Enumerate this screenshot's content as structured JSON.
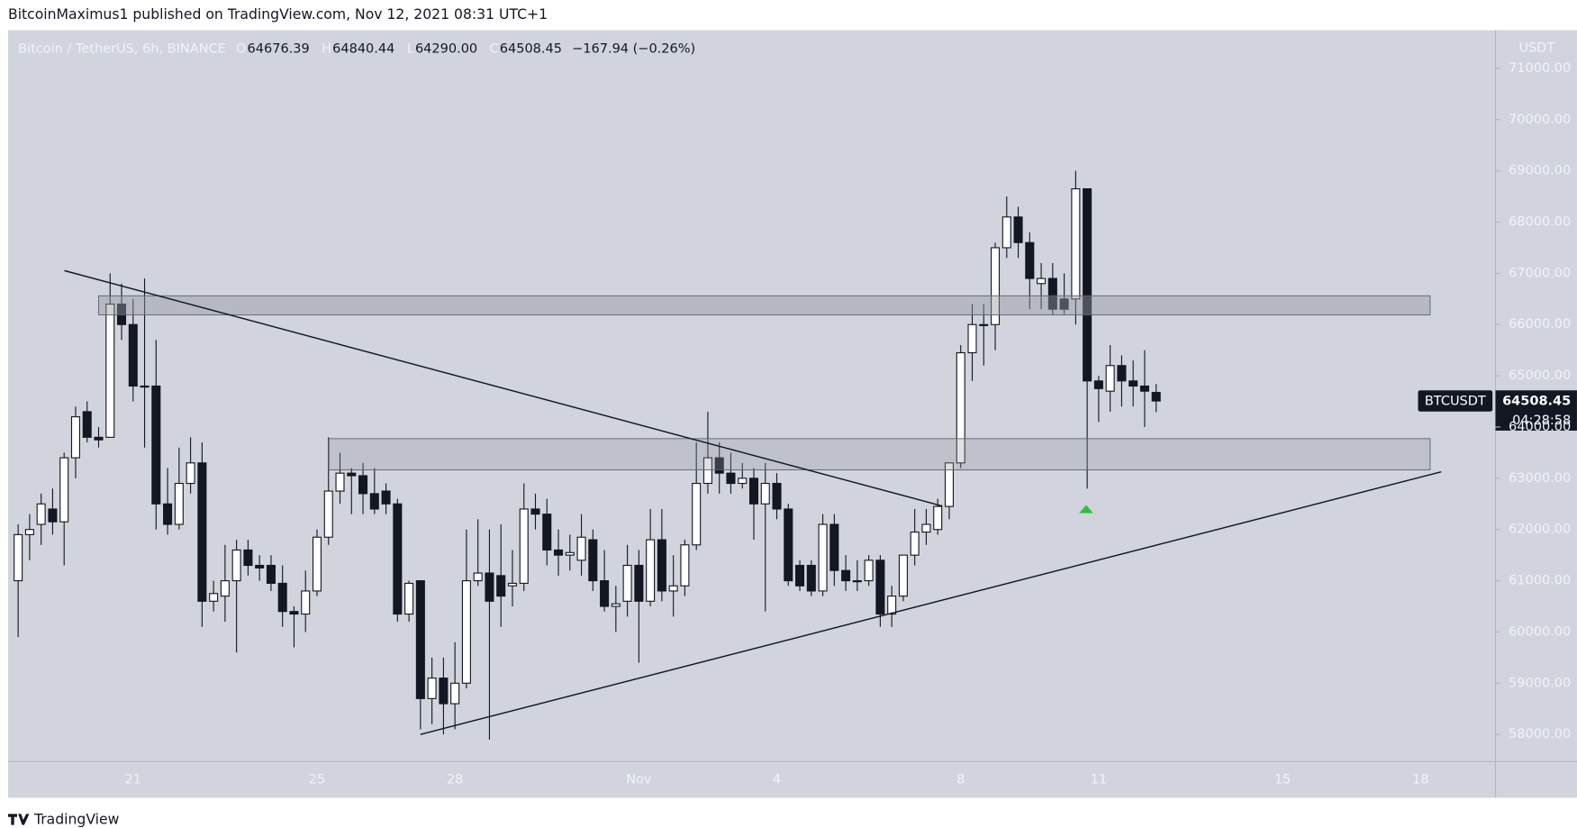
{
  "header": {
    "published": "BitcoinMaximus1 published on TradingView.com, Nov 12, 2021 08:31 UTC+1",
    "logo": "TradingView"
  },
  "chart_data": {
    "type": "candlestick",
    "legend": {
      "symbol": "Bitcoin / TetherUS, 6h, BINANCE",
      "items": [
        {
          "key": "O",
          "value": "64676.39"
        },
        {
          "key": "H",
          "value": "64840.44"
        },
        {
          "key": "L",
          "value": "64290.00"
        },
        {
          "key": "C",
          "value": "64508.45"
        }
      ],
      "change": "−167.94 (−0.26%)"
    },
    "y_axis_unit": "USDT",
    "symbol_tag": "BTCUSDT",
    "last_price_label": "64508.45",
    "countdown": "04:28:58",
    "up_color": "#ffffff",
    "down_color": "#131722",
    "background": "#d1d4dc",
    "grid": false,
    "ylim": [
      57470,
      71746
    ],
    "yticks": [
      {
        "value": 58000,
        "label": "58000.00"
      },
      {
        "value": 59000,
        "label": "59000.00"
      },
      {
        "value": 60000,
        "label": "60000.00"
      },
      {
        "value": 61000,
        "label": "61000.00"
      },
      {
        "value": 62000,
        "label": "62000.00"
      },
      {
        "value": 63000,
        "label": "63000.00"
      },
      {
        "value": 64000,
        "label": "64000.00"
      },
      {
        "value": 65000,
        "label": "65000.00"
      },
      {
        "value": 66000,
        "label": "66000.00"
      },
      {
        "value": 67000,
        "label": "67000.00"
      },
      {
        "value": 68000,
        "label": "68000.00"
      },
      {
        "value": 69000,
        "label": "69000.00"
      },
      {
        "value": 70000,
        "label": "70000.00"
      },
      {
        "value": 71000,
        "label": "71000.00"
      }
    ],
    "categories": [
      null,
      null,
      null,
      null,
      null,
      null,
      null,
      null,
      null,
      null,
      "21",
      null,
      null,
      null,
      null,
      null,
      null,
      null,
      null,
      null,
      null,
      null,
      null,
      null,
      null,
      null,
      "25",
      null,
      null,
      null,
      null,
      null,
      null,
      null,
      null,
      null,
      null,
      null,
      "28",
      null,
      null,
      null,
      null,
      null,
      null,
      null,
      null,
      null,
      null,
      null,
      null,
      null,
      null,
      null,
      "Nov",
      null,
      null,
      null,
      null,
      null,
      null,
      null,
      null,
      null,
      null,
      null,
      "4",
      null,
      null,
      null,
      null,
      null,
      null,
      null,
      null,
      null,
      null,
      null,
      null,
      null,
      null,
      null,
      "8",
      null,
      null,
      null,
      null,
      null,
      null,
      null,
      null,
      null,
      null,
      null,
      "11",
      null,
      null,
      null,
      null,
      null,
      null,
      null,
      null,
      null,
      null,
      null,
      null,
      null,
      null,
      null,
      "15",
      null,
      null,
      null,
      null,
      null,
      null,
      null,
      null,
      null,
      null,
      null,
      "18",
      null,
      null,
      null,
      null,
      null,
      null
    ],
    "open": [
      61000,
      61900,
      62100,
      62400,
      62150,
      63400,
      64300,
      63800,
      63800,
      66400,
      66000,
      64800,
      64800,
      62500,
      62100,
      62900,
      63300,
      60600,
      60700,
      61000,
      61600,
      61300,
      61300,
      60950,
      60400,
      60350,
      60800,
      61850,
      62750,
      63100,
      63050,
      62700,
      62750,
      62500,
      60350,
      61000,
      58700,
      59100,
      58600,
      59000,
      61000,
      61150,
      61100,
      60900,
      60950,
      62400,
      62300,
      61600,
      61500,
      61400,
      61800,
      61000,
      60500,
      60600,
      61300,
      60600,
      61800,
      60800,
      60900,
      61700,
      62900,
      63400,
      63100,
      62900,
      63000,
      62500,
      62900,
      62400,
      61300,
      61300,
      60800,
      62100,
      61200,
      61000,
      61000,
      61400,
      60350,
      60700,
      61500,
      61950,
      62000,
      62450,
      63300,
      65450,
      66000,
      66000,
      67500,
      68100,
      67600,
      66800,
      66900,
      66500,
      66500,
      68650,
      64900,
      64700,
      65200,
      64900,
      64800,
      64676.39,
      null,
      null,
      null,
      null,
      null,
      null,
      null,
      null,
      null,
      null,
      null,
      null,
      null,
      null,
      null,
      null,
      null,
      null,
      null,
      null,
      null,
      null,
      null,
      null,
      null,
      null,
      null,
      null,
      null
    ],
    "high": [
      62100,
      62300,
      62700,
      62800,
      63500,
      64400,
      64500,
      64000,
      67000,
      66800,
      66500,
      66900,
      65700,
      63200,
      63600,
      63800,
      63700,
      61000,
      61700,
      61800,
      61800,
      61500,
      61500,
      61300,
      60500,
      61200,
      62000,
      63800,
      63500,
      63200,
      63300,
      63200,
      62900,
      62600,
      61000,
      61000,
      59500,
      59500,
      59800,
      62000,
      62200,
      62000,
      62100,
      61600,
      62900,
      62700,
      62600,
      62000,
      61900,
      62300,
      62000,
      61600,
      60900,
      61700,
      61600,
      62400,
      62400,
      61500,
      61800,
      63700,
      64300,
      63700,
      63500,
      63300,
      63200,
      63300,
      63100,
      62500,
      61400,
      61400,
      62300,
      62300,
      61500,
      61400,
      61500,
      61500,
      60900,
      61500,
      62400,
      62400,
      62600,
      63300,
      65600,
      66400,
      66400,
      67600,
      68500,
      68300,
      67800,
      67200,
      67200,
      67000,
      69000,
      68650,
      65000,
      65600,
      65400,
      65300,
      65500,
      64840.44,
      null,
      null,
      null,
      null,
      null,
      null,
      null,
      null,
      null,
      null,
      null,
      null,
      null,
      null,
      null,
      null,
      null,
      null,
      null,
      null,
      null,
      null,
      null,
      null,
      null,
      null,
      null,
      null,
      null
    ],
    "low": [
      59900,
      61400,
      61700,
      61900,
      61300,
      63000,
      63700,
      63600,
      63800,
      65700,
      64500,
      63600,
      62000,
      61900,
      62000,
      62700,
      60100,
      60400,
      60200,
      59600,
      61100,
      61000,
      60800,
      60100,
      59700,
      60000,
      60700,
      61700,
      62500,
      62300,
      62300,
      62300,
      62300,
      60200,
      60200,
      58100,
      58200,
      58000,
      58100,
      58900,
      60900,
      57900,
      60100,
      60500,
      60800,
      62000,
      61300,
      61100,
      61200,
      61100,
      60800,
      60400,
      60000,
      60300,
      59400,
      60500,
      60600,
      60300,
      60700,
      61600,
      62700,
      62700,
      62700,
      62800,
      61800,
      60400,
      62200,
      60900,
      60800,
      60700,
      60700,
      60900,
      60800,
      60800,
      60900,
      60100,
      60100,
      60600,
      61300,
      61700,
      61900,
      62200,
      63200,
      64900,
      65200,
      65500,
      67300,
      67300,
      66300,
      66300,
      66200,
      66200,
      66000,
      62800,
      64100,
      64300,
      64400,
      64400,
      64000,
      64290,
      null,
      null,
      null,
      null,
      null,
      null,
      null,
      null,
      null,
      null,
      null,
      null,
      null,
      null,
      null,
      null,
      null,
      null,
      null,
      null,
      null,
      null,
      null,
      null,
      null,
      null,
      null,
      null,
      null
    ],
    "close": [
      61900,
      62000,
      62500,
      62150,
      63400,
      64200,
      63800,
      63750,
      66400,
      66000,
      64800,
      64800,
      62500,
      62100,
      62900,
      63300,
      60600,
      60750,
      61000,
      61600,
      61300,
      61250,
      60950,
      60400,
      60350,
      60800,
      61850,
      62750,
      63100,
      63050,
      62700,
      62400,
      62500,
      60350,
      60950,
      58700,
      59100,
      58600,
      59000,
      61000,
      61150,
      60600,
      60700,
      60950,
      62400,
      62300,
      61600,
      61500,
      61550,
      61850,
      61000,
      60500,
      60550,
      61300,
      60600,
      61800,
      60800,
      60900,
      61700,
      62900,
      63400,
      63100,
      62900,
      63000,
      62500,
      62900,
      62400,
      61000,
      60900,
      60800,
      62100,
      61200,
      61000,
      61000,
      61400,
      60350,
      60700,
      61500,
      61950,
      62100,
      62450,
      63300,
      65450,
      66000,
      65980,
      67500,
      68100,
      67600,
      66900,
      66900,
      66300,
      66300,
      68650,
      64900,
      64750,
      65200,
      64900,
      64800,
      64700,
      64508.45,
      null,
      null,
      null,
      null,
      null,
      null,
      null,
      null,
      null,
      null,
      null,
      null,
      null,
      null,
      null,
      null,
      null,
      null,
      null,
      null,
      null,
      null,
      null,
      null,
      null,
      null,
      null,
      null,
      null
    ]
  }
}
